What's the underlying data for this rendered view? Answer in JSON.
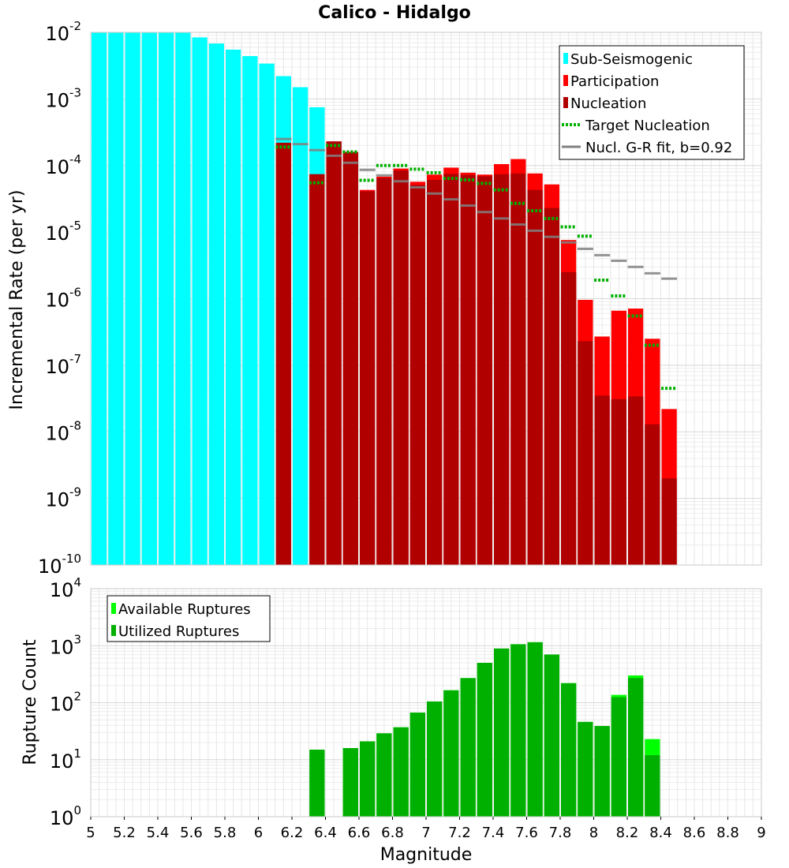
{
  "chart_data": [
    {
      "type": "bar",
      "title": "Calico - Hidalgo",
      "ylabel": "Incremental Rate (per yr)",
      "xlabel": "Magnitude",
      "xlim": [
        5,
        9
      ],
      "ylim": [
        1e-10,
        0.01
      ],
      "log_y": true,
      "grid": true,
      "legend_position": "top-right",
      "ytick_exponents": [
        -2,
        -3,
        -4,
        -5,
        -6,
        -7,
        -8,
        -9,
        -10
      ],
      "bin_centers": [
        5.05,
        5.15,
        5.25,
        5.35,
        5.45,
        5.55,
        5.65,
        5.75,
        5.85,
        5.95,
        6.05,
        6.15,
        6.25,
        6.35,
        6.45,
        6.55,
        6.65,
        6.75,
        6.85,
        6.95,
        7.05,
        7.15,
        7.25,
        7.35,
        7.45,
        7.55,
        7.65,
        7.75,
        7.85,
        7.95,
        8.05,
        8.15,
        8.25,
        8.35,
        8.45
      ],
      "series": [
        {
          "name": "Sub-Seismogenic",
          "color": "#00ffff",
          "values": [
            0.01,
            0.01,
            0.01,
            0.01,
            0.01,
            0.01,
            0.0084,
            0.0068,
            0.0055,
            0.0044,
            0.0034,
            0.0022,
            0.0015,
            0.00075,
            0.00022,
            null,
            null,
            null,
            null,
            null,
            null,
            null,
            null,
            null,
            null,
            null,
            null,
            null,
            null,
            null,
            null,
            null,
            null,
            null,
            null
          ]
        },
        {
          "name": "Participation",
          "color": "#ff0000",
          "values": [
            null,
            null,
            null,
            null,
            null,
            null,
            null,
            null,
            null,
            null,
            null,
            null,
            null,
            7.4e-05,
            0.00023,
            0.00016,
            4.3e-05,
            6.8e-05,
            9e-05,
            5.7e-05,
            7.3e-05,
            9.3e-05,
            7.8e-05,
            7.3e-05,
            0.000105,
            0.000125,
            7.6e-05,
            5.2e-05,
            7.6e-06,
            9.6e-07,
            2.7e-07,
            6.6e-07,
            7.1e-07,
            2.5e-07,
            2.2e-08
          ]
        },
        {
          "name": "Nucleation",
          "color": "#b00000",
          "values": [
            null,
            null,
            null,
            null,
            null,
            null,
            null,
            null,
            null,
            null,
            null,
            0.00022,
            null,
            7.4e-05,
            0.00023,
            0.00016,
            4.1e-05,
            6.5e-05,
            8.4e-05,
            5.1e-05,
            6.1e-05,
            7.5e-05,
            7.2e-05,
            6.9e-05,
            7.4e-05,
            7.6e-05,
            4.3e-05,
            2.3e-05,
            2.5e-06,
            2.3e-07,
            3.5e-08,
            3.1e-08,
            3.4e-08,
            1.3e-08,
            2e-09
          ]
        },
        {
          "name": "Target Nucleation",
          "color": "#00b000",
          "values": [
            null,
            null,
            null,
            null,
            null,
            null,
            null,
            null,
            null,
            null,
            null,
            0.00019,
            null,
            5.5e-05,
            0.0002,
            0.00016,
            6e-05,
            0.0001,
            0.0001,
            8.8e-05,
            7.8e-05,
            6.4e-05,
            6.1e-05,
            5.4e-05,
            4.3e-05,
            2.7e-05,
            2.1e-05,
            1.6e-05,
            1.2e-05,
            8.7e-06,
            1.9e-06,
            1.1e-06,
            5.5e-07,
            2e-07,
            4.5e-08
          ]
        },
        {
          "name": "Nucl. G-R fit, b=0.92",
          "color": "#808080",
          "values": [
            null,
            null,
            null,
            null,
            null,
            null,
            null,
            null,
            null,
            null,
            null,
            0.00025,
            0.00021,
            0.00017,
            0.00014,
            0.00011,
            8.6e-05,
            7.1e-05,
            5.8e-05,
            4.7e-05,
            3.8e-05,
            3.1e-05,
            2.5e-05,
            2e-05,
            1.6e-05,
            1.3e-05,
            1.05e-05,
            8.5e-06,
            7e-06,
            5.6e-06,
            4.5e-06,
            3.7e-06,
            3e-06,
            2.4e-06,
            2e-06
          ]
        }
      ]
    },
    {
      "type": "bar",
      "ylabel": "Rupture Count",
      "xlabel": "Magnitude",
      "xlim": [
        5,
        9
      ],
      "ylim": [
        1,
        10000
      ],
      "log_y": true,
      "grid": true,
      "legend_position": "top-left",
      "xticks": [
        "5",
        "5.2",
        "5.4",
        "5.6",
        "5.8",
        "6",
        "6.2",
        "6.4",
        "6.6",
        "6.8",
        "7",
        "7.2",
        "7.4",
        "7.6",
        "7.8",
        "8",
        "8.2",
        "8.4",
        "8.6",
        "8.8",
        "9"
      ],
      "ytick_exponents": [
        4,
        3,
        2,
        1,
        0
      ],
      "bin_centers": [
        6.35,
        6.55,
        6.65,
        6.75,
        6.85,
        6.95,
        7.05,
        7.15,
        7.25,
        7.35,
        7.45,
        7.55,
        7.65,
        7.75,
        7.85,
        7.95,
        8.05,
        8.15,
        8.25,
        8.35
      ],
      "series": [
        {
          "name": "Available Ruptures",
          "color": "#00ff00",
          "values": [
            15,
            16,
            21,
            29,
            37,
            67,
            105,
            165,
            270,
            500,
            890,
            1060,
            1150,
            700,
            220,
            46,
            39,
            137,
            300,
            23
          ]
        },
        {
          "name": "Utilized Ruptures",
          "color": "#00b000",
          "values": [
            15,
            16,
            21,
            29,
            37,
            67,
            105,
            165,
            270,
            500,
            890,
            1060,
            1150,
            700,
            220,
            46,
            39,
            125,
            270,
            12
          ]
        }
      ]
    }
  ]
}
